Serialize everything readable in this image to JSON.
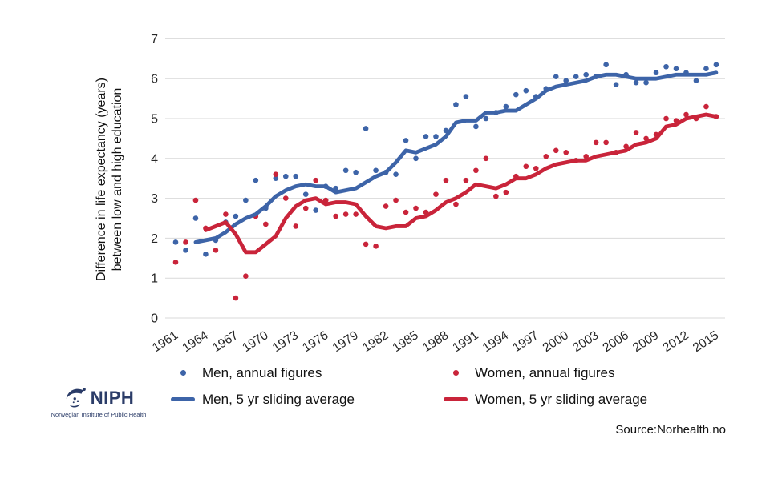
{
  "y_axis_title": {
    "line1": "Difference in life expectancy (years)",
    "line2": "between low and high education"
  },
  "source_text": "Source:Norhealth.no",
  "logo": {
    "name": "NIPH",
    "subtitle": "Norwegian Institute of Public Health"
  },
  "colors": {
    "men": "#3d64a8",
    "women": "#c9243a",
    "gridline": "#d9d9d9",
    "tick_text": "#262626"
  },
  "legend": [
    {
      "label": "Men, annual figures",
      "marker": "dot",
      "color": "#3d64a8"
    },
    {
      "label": "Women, annual figures",
      "marker": "dot",
      "color": "#c9243a"
    },
    {
      "label": "Men, 5 yr sliding average",
      "marker": "line",
      "color": "#3d64a8"
    },
    {
      "label": "Women, 5 yr sliding average",
      "marker": "line",
      "color": "#c9243a"
    }
  ],
  "chart_data": {
    "type": "scatter",
    "title": "",
    "xlabel": "",
    "ylabel": "Difference in life expectancy (years) between low and high education",
    "xlim": [
      1961,
      2015
    ],
    "ylim": [
      0,
      7
    ],
    "grid": "horizontal",
    "legend_position": "bottom",
    "x_ticks": [
      1961,
      1964,
      1967,
      1970,
      1973,
      1976,
      1979,
      1982,
      1985,
      1988,
      1991,
      1994,
      1997,
      2000,
      2003,
      2006,
      2009,
      2012,
      2015
    ],
    "y_ticks": [
      0,
      1,
      2,
      3,
      4,
      5,
      6,
      7
    ],
    "series": [
      {
        "name": "Men, annual figures",
        "type": "scatter",
        "color": "#3d64a8",
        "x_start": 1961,
        "values": [
          1.9,
          1.7,
          2.5,
          1.6,
          1.95,
          2.4,
          2.55,
          2.95,
          3.45,
          2.75,
          3.5,
          3.55,
          3.55,
          3.1,
          2.7,
          3.3,
          3.25,
          3.7,
          3.65,
          4.75,
          3.7,
          3.65,
          3.6,
          4.45,
          4.0,
          4.55,
          4.55,
          4.7,
          5.35,
          5.55,
          4.8,
          5.0,
          5.15,
          5.3,
          5.6,
          5.7,
          5.55,
          5.75,
          6.05,
          5.95,
          6.05,
          6.1,
          6.05,
          6.35,
          5.85,
          6.1,
          5.9,
          5.9,
          6.15,
          6.3,
          6.25,
          6.15,
          5.95,
          6.25,
          6.35
        ]
      },
      {
        "name": "Women, annual figures",
        "type": "scatter",
        "color": "#c9243a",
        "x_start": 1961,
        "values": [
          1.4,
          1.9,
          2.95,
          2.25,
          1.7,
          2.6,
          0.5,
          1.05,
          2.55,
          2.35,
          3.6,
          3.0,
          2.3,
          2.75,
          3.45,
          2.95,
          2.55,
          2.6,
          2.6,
          1.85,
          1.8,
          2.8,
          2.95,
          2.65,
          2.75,
          2.65,
          3.1,
          3.45,
          2.85,
          3.45,
          3.7,
          4.0,
          3.05,
          3.15,
          3.55,
          3.8,
          3.75,
          4.05,
          4.2,
          4.15,
          3.95,
          4.05,
          4.4,
          4.4,
          4.15,
          4.3,
          4.65,
          4.5,
          4.6,
          5.0,
          4.95,
          5.1,
          5.0,
          5.3,
          5.05
        ]
      },
      {
        "name": "Men, 5 yr sliding average",
        "type": "line",
        "color": "#3d64a8",
        "x_start": 1963,
        "values": [
          1.9,
          1.95,
          2.0,
          2.15,
          2.35,
          2.5,
          2.6,
          2.8,
          3.05,
          3.2,
          3.3,
          3.35,
          3.3,
          3.3,
          3.15,
          3.2,
          3.25,
          3.4,
          3.55,
          3.65,
          3.9,
          4.2,
          4.15,
          4.25,
          4.35,
          4.55,
          4.9,
          4.95,
          4.95,
          5.15,
          5.15,
          5.2,
          5.2,
          5.35,
          5.5,
          5.7,
          5.8,
          5.85,
          5.9,
          5.95,
          6.05,
          6.1,
          6.1,
          6.05,
          6.0,
          6.0,
          6.0,
          6.05,
          6.1,
          6.1,
          6.1,
          6.1,
          6.15
        ]
      },
      {
        "name": "Women, 5 yr sliding average",
        "type": "line",
        "color": "#c9243a",
        "x_start": 1964,
        "values": [
          2.2,
          2.3,
          2.4,
          2.1,
          1.65,
          1.65,
          1.85,
          2.05,
          2.5,
          2.8,
          2.95,
          3.0,
          2.85,
          2.9,
          2.9,
          2.85,
          2.55,
          2.3,
          2.25,
          2.3,
          2.3,
          2.5,
          2.55,
          2.7,
          2.9,
          3.0,
          3.15,
          3.35,
          3.3,
          3.25,
          3.35,
          3.5,
          3.5,
          3.6,
          3.75,
          3.85,
          3.9,
          3.95,
          3.95,
          4.05,
          4.1,
          4.15,
          4.2,
          4.35,
          4.4,
          4.5,
          4.8,
          4.85,
          5.0,
          5.05,
          5.1,
          5.05
        ]
      }
    ]
  }
}
